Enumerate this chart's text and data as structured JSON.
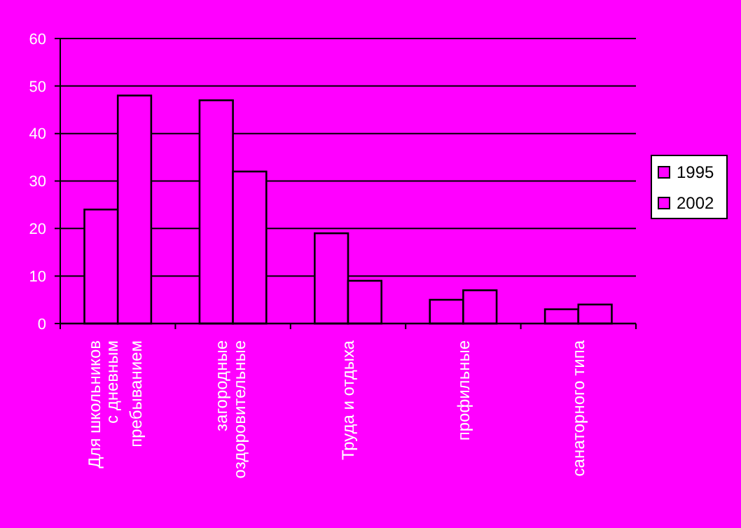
{
  "chart_data": {
    "type": "bar",
    "categories": [
      "Для школьников\nс дневным\nпребыванием",
      "загородные\nоздоровительные",
      "Труда и отдыха",
      "профильные",
      "санаторного типа"
    ],
    "series": [
      {
        "name": "1995",
        "color": "#ff00ff",
        "values": [
          24,
          47,
          19,
          5,
          3
        ]
      },
      {
        "name": "2002",
        "color": "#ff00ff",
        "values": [
          48,
          32,
          9,
          7,
          4
        ]
      }
    ],
    "ylim": [
      0,
      60
    ],
    "yticks": [
      0,
      10,
      20,
      30,
      40,
      50,
      60
    ],
    "grid": "y",
    "legend": "right"
  }
}
